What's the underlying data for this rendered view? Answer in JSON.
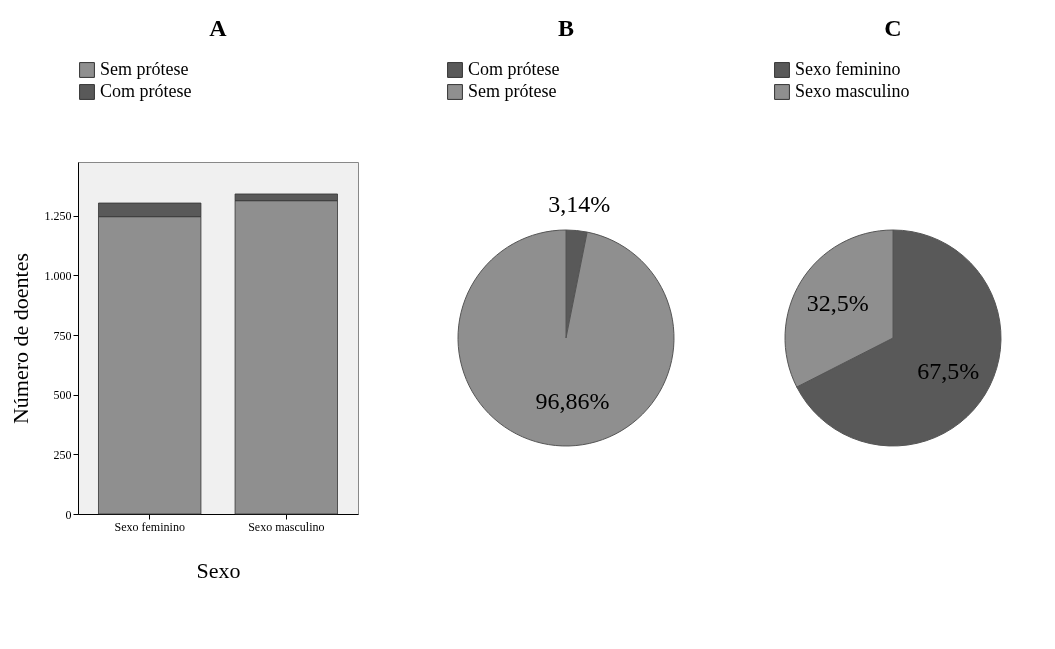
{
  "chart_data": [
    {
      "type": "bar",
      "title": "A",
      "xlabel": "Sexo",
      "ylabel": "Número de doentes",
      "categories": [
        "Sexo feminino",
        "Sexo masculino"
      ],
      "stacked": true,
      "legend": "top",
      "series": [
        {
          "name": "Sem prótese",
          "color": "#8f8f8f",
          "values": [
            1246,
            1313
          ]
        },
        {
          "name": "Com prótese",
          "color": "#595959",
          "values": [
            57,
            28
          ]
        }
      ],
      "ylim": [
        0,
        1475
      ],
      "yticks": [
        0,
        250,
        500,
        750,
        {
          "value": 1000,
          "label": "1.000"
        },
        {
          "value": 1250,
          "label": "1.250"
        }
      ]
    },
    {
      "type": "pie",
      "title": "B",
      "categories": [
        "Com prótese",
        "Sem prótese"
      ],
      "values": [
        3.14,
        96.86
      ],
      "colors": [
        "#595959",
        "#8f8f8f"
      ],
      "value_labels": [
        "3,14%",
        "96,86%"
      ],
      "legend": "top"
    },
    {
      "type": "pie",
      "title": "C",
      "categories": [
        "Sexo feminino",
        "Sexo masculino"
      ],
      "values": [
        67.5,
        32.5
      ],
      "colors": [
        "#595959",
        "#8f8f8f"
      ],
      "value_labels": [
        "67,5%",
        "32,5%"
      ],
      "legend": "top"
    }
  ]
}
